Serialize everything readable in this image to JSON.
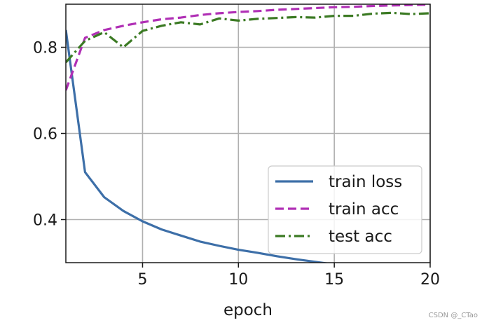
{
  "chart_data": {
    "type": "line",
    "xlabel": "epoch",
    "ylabel": "",
    "xlim": [
      1,
      20
    ],
    "ylim": [
      0.3,
      0.9
    ],
    "xticks": [
      5,
      10,
      15,
      20
    ],
    "yticks": [
      0.4,
      0.6,
      0.8
    ],
    "grid": true,
    "legend_position": "bottom-right",
    "x": [
      1,
      2,
      3,
      4,
      5,
      6,
      7,
      8,
      9,
      10,
      11,
      12,
      13,
      14,
      15,
      16,
      17,
      18,
      19,
      20
    ],
    "series": [
      {
        "name": "train loss",
        "color": "#3d6fa8",
        "style": "solid",
        "values": [
          0.84,
          0.51,
          0.452,
          0.42,
          0.396,
          0.377,
          0.363,
          0.349,
          0.339,
          0.33,
          0.323,
          0.315,
          0.308,
          0.302,
          0.296,
          0.291,
          0.286,
          0.281,
          0.277,
          0.273
        ]
      },
      {
        "name": "train acc",
        "color": "#b02fb5",
        "style": "dashed",
        "values": [
          0.7,
          0.822,
          0.84,
          0.85,
          0.858,
          0.865,
          0.869,
          0.875,
          0.879,
          0.882,
          0.884,
          0.887,
          0.889,
          0.891,
          0.893,
          0.894,
          0.896,
          0.897,
          0.898,
          0.899
        ]
      },
      {
        "name": "test acc",
        "color": "#3b7a23",
        "style": "dashdot",
        "values": [
          0.765,
          0.815,
          0.835,
          0.8,
          0.838,
          0.85,
          0.858,
          0.853,
          0.867,
          0.862,
          0.866,
          0.868,
          0.87,
          0.869,
          0.873,
          0.873,
          0.878,
          0.88,
          0.877,
          0.879
        ]
      }
    ]
  },
  "watermark": "CSDN @_CTao"
}
